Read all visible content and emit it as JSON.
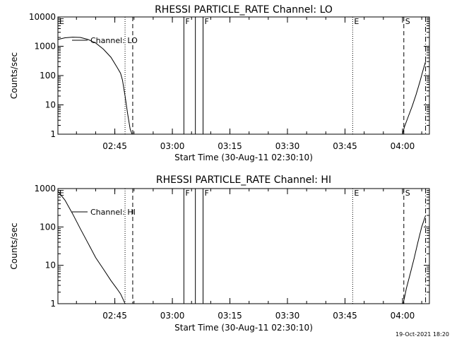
{
  "footer": {
    "timestamp": "19-Oct-2021 18:20"
  },
  "chart_data": [
    {
      "type": "line",
      "title": "RHESSI PARTICLE_RATE Channel: LO",
      "xlabel": "Start Time (30-Aug-11 02:30:10)",
      "ylabel": "Counts/sec",
      "y_scale": "log",
      "ylim": [
        1,
        10000
      ],
      "xlim": [
        "02:30:10",
        "04:07:00"
      ],
      "x_ticks": [
        "02:45",
        "03:00",
        "03:15",
        "03:30",
        "03:45",
        "04:00"
      ],
      "y_ticks": [
        "1",
        "10",
        "100",
        "1000",
        "10000"
      ],
      "legend": {
        "label": "Channel: LO",
        "placement": "top-left"
      },
      "series": [
        {
          "name": "Channel: LO",
          "segments": [
            {
              "x": [
                "02:30:10",
                "02:32:00",
                "02:34:00",
                "02:36:00",
                "02:38:00",
                "02:40:00",
                "02:42:00",
                "02:44:00",
                "02:45:30",
                "02:46:30",
                "02:47:00",
                "02:47:40",
                "02:48:20",
                "02:49:00",
                "02:49:30"
              ],
              "y": [
                1700,
                1950,
                2050,
                2000,
                1700,
                1300,
                800,
                420,
                200,
                120,
                70,
                20,
                5,
                1.5,
                1
              ]
            },
            {
              "x": [
                "04:00:00",
                "04:00:30",
                "04:01:30",
                "04:02:30",
                "04:03:30",
                "04:04:30",
                "04:05:20",
                "04:06:00"
              ],
              "y": [
                1,
                1.8,
                4,
                9,
                22,
                60,
                150,
                300
              ]
            }
          ]
        }
      ],
      "markers": [
        {
          "label": "E",
          "x": "02:30:10",
          "style": "solid"
        },
        {
          "label": "",
          "x": "02:47:40",
          "style": "dotted"
        },
        {
          "label": "",
          "x": "02:49:40",
          "style": "dashed"
        },
        {
          "label": "F",
          "x": "03:03:00",
          "style": "solid"
        },
        {
          "label": "",
          "x": "03:06:00",
          "style": "solid"
        },
        {
          "label": "F",
          "x": "03:08:00",
          "style": "solid"
        },
        {
          "label": "E",
          "x": "03:47:00",
          "style": "dotted"
        },
        {
          "label": "S",
          "x": "04:00:20",
          "style": "dashed"
        },
        {
          "label": "",
          "x": "04:06:00",
          "style": "dashdot"
        }
      ]
    },
    {
      "type": "line",
      "title": "RHESSI PARTICLE_RATE Channel: HI",
      "xlabel": "Start Time (30-Aug-11 02:30:10)",
      "ylabel": "Counts/sec",
      "y_scale": "log",
      "ylim": [
        1,
        1000
      ],
      "xlim": [
        "02:30:10",
        "04:07:00"
      ],
      "x_ticks": [
        "02:45",
        "03:00",
        "03:15",
        "03:30",
        "03:45",
        "04:00"
      ],
      "y_ticks": [
        "1",
        "10",
        "100",
        "1000"
      ],
      "legend": {
        "label": "Channel: HI",
        "placement": "top-left"
      },
      "series": [
        {
          "name": "Channel: HI",
          "segments": [
            {
              "x": [
                "02:30:10",
                "02:32:00",
                "02:34:00",
                "02:36:00",
                "02:38:00",
                "02:40:00",
                "02:42:00",
                "02:44:00",
                "02:45:30",
                "02:46:30",
                "02:47:10",
                "02:47:40"
              ],
              "y": [
                850,
                500,
                220,
                90,
                38,
                16,
                8,
                4,
                2.5,
                1.8,
                1.3,
                1
              ]
            },
            {
              "x": [
                "04:00:10",
                "04:01:00",
                "04:02:00",
                "04:03:00",
                "04:04:00",
                "04:05:00",
                "04:06:00"
              ],
              "y": [
                1,
                2.5,
                6,
                15,
                40,
                100,
                200
              ]
            }
          ]
        }
      ],
      "markers": [
        {
          "label": "E",
          "x": "02:30:10",
          "style": "solid"
        },
        {
          "label": "",
          "x": "02:47:40",
          "style": "dotted"
        },
        {
          "label": "",
          "x": "02:49:40",
          "style": "dashed"
        },
        {
          "label": "F",
          "x": "03:03:00",
          "style": "solid"
        },
        {
          "label": "",
          "x": "03:06:00",
          "style": "solid"
        },
        {
          "label": "F",
          "x": "03:08:00",
          "style": "solid"
        },
        {
          "label": "E",
          "x": "03:47:00",
          "style": "dotted"
        },
        {
          "label": "S",
          "x": "04:00:20",
          "style": "dashed"
        },
        {
          "label": "",
          "x": "04:06:00",
          "style": "dashdot"
        }
      ]
    }
  ]
}
